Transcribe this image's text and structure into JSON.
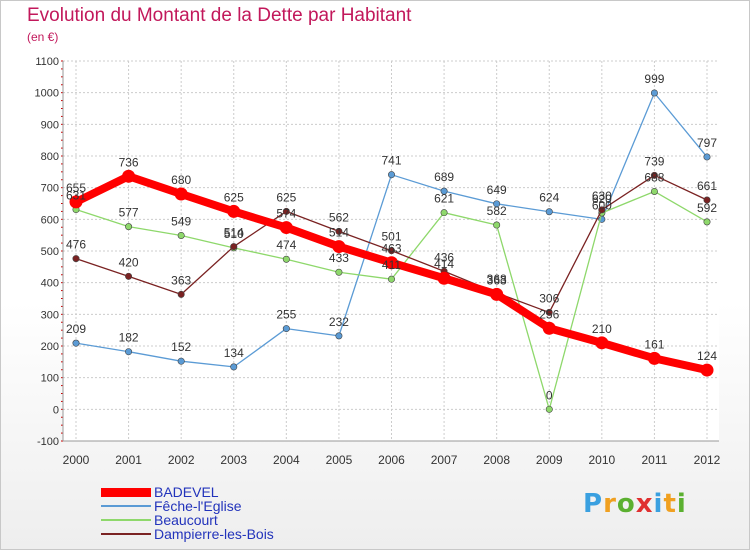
{
  "chart_data": {
    "type": "line",
    "title": "Evolution du Montant de la Dette par Habitant",
    "subtitle": "(en €)",
    "x": [
      "2000",
      "2001",
      "2002",
      "2003",
      "2004",
      "2005",
      "2006",
      "2007",
      "2008",
      "2009",
      "2010",
      "2011",
      "2012"
    ],
    "ylim": [
      -100,
      1100
    ],
    "yticks": [
      "-100",
      "0",
      "100",
      "200",
      "300",
      "400",
      "500",
      "600",
      "700",
      "800",
      "900",
      "1000",
      "1100"
    ],
    "grid": true,
    "legend_position": "bottom-left",
    "series": [
      {
        "name": "BADEVEL",
        "color": "#ff0000",
        "values": [
          655,
          736,
          680,
          625,
          574,
          514,
          463,
          414,
          363,
          256,
          210,
          161,
          124
        ]
      },
      {
        "name": "Fêche-l'Eglise",
        "color": "#5b9bd5",
        "values": [
          209,
          182,
          152,
          134,
          255,
          232,
          741,
          689,
          649,
          624,
          600,
          999,
          797
        ]
      },
      {
        "name": "Beaucourt",
        "color": "#8ed86b",
        "values": [
          631,
          577,
          549,
          510,
          474,
          433,
          411,
          621,
          582,
          0,
          620,
          688,
          592
        ]
      },
      {
        "name": "Dampierre-les-Bois",
        "color": "#7a2222",
        "values": [
          476,
          420,
          363,
          514,
          625,
          562,
          501,
          436,
          368,
          306,
          630,
          739,
          661
        ]
      }
    ]
  },
  "logo": {
    "letters": [
      "P",
      "r",
      "o",
      "x",
      "i",
      "t",
      "i"
    ],
    "colors": [
      "#3aa0e0",
      "#f0a020",
      "#5bb030",
      "#e03030",
      "#3aa0e0",
      "#f0a020",
      "#5bb030"
    ]
  }
}
